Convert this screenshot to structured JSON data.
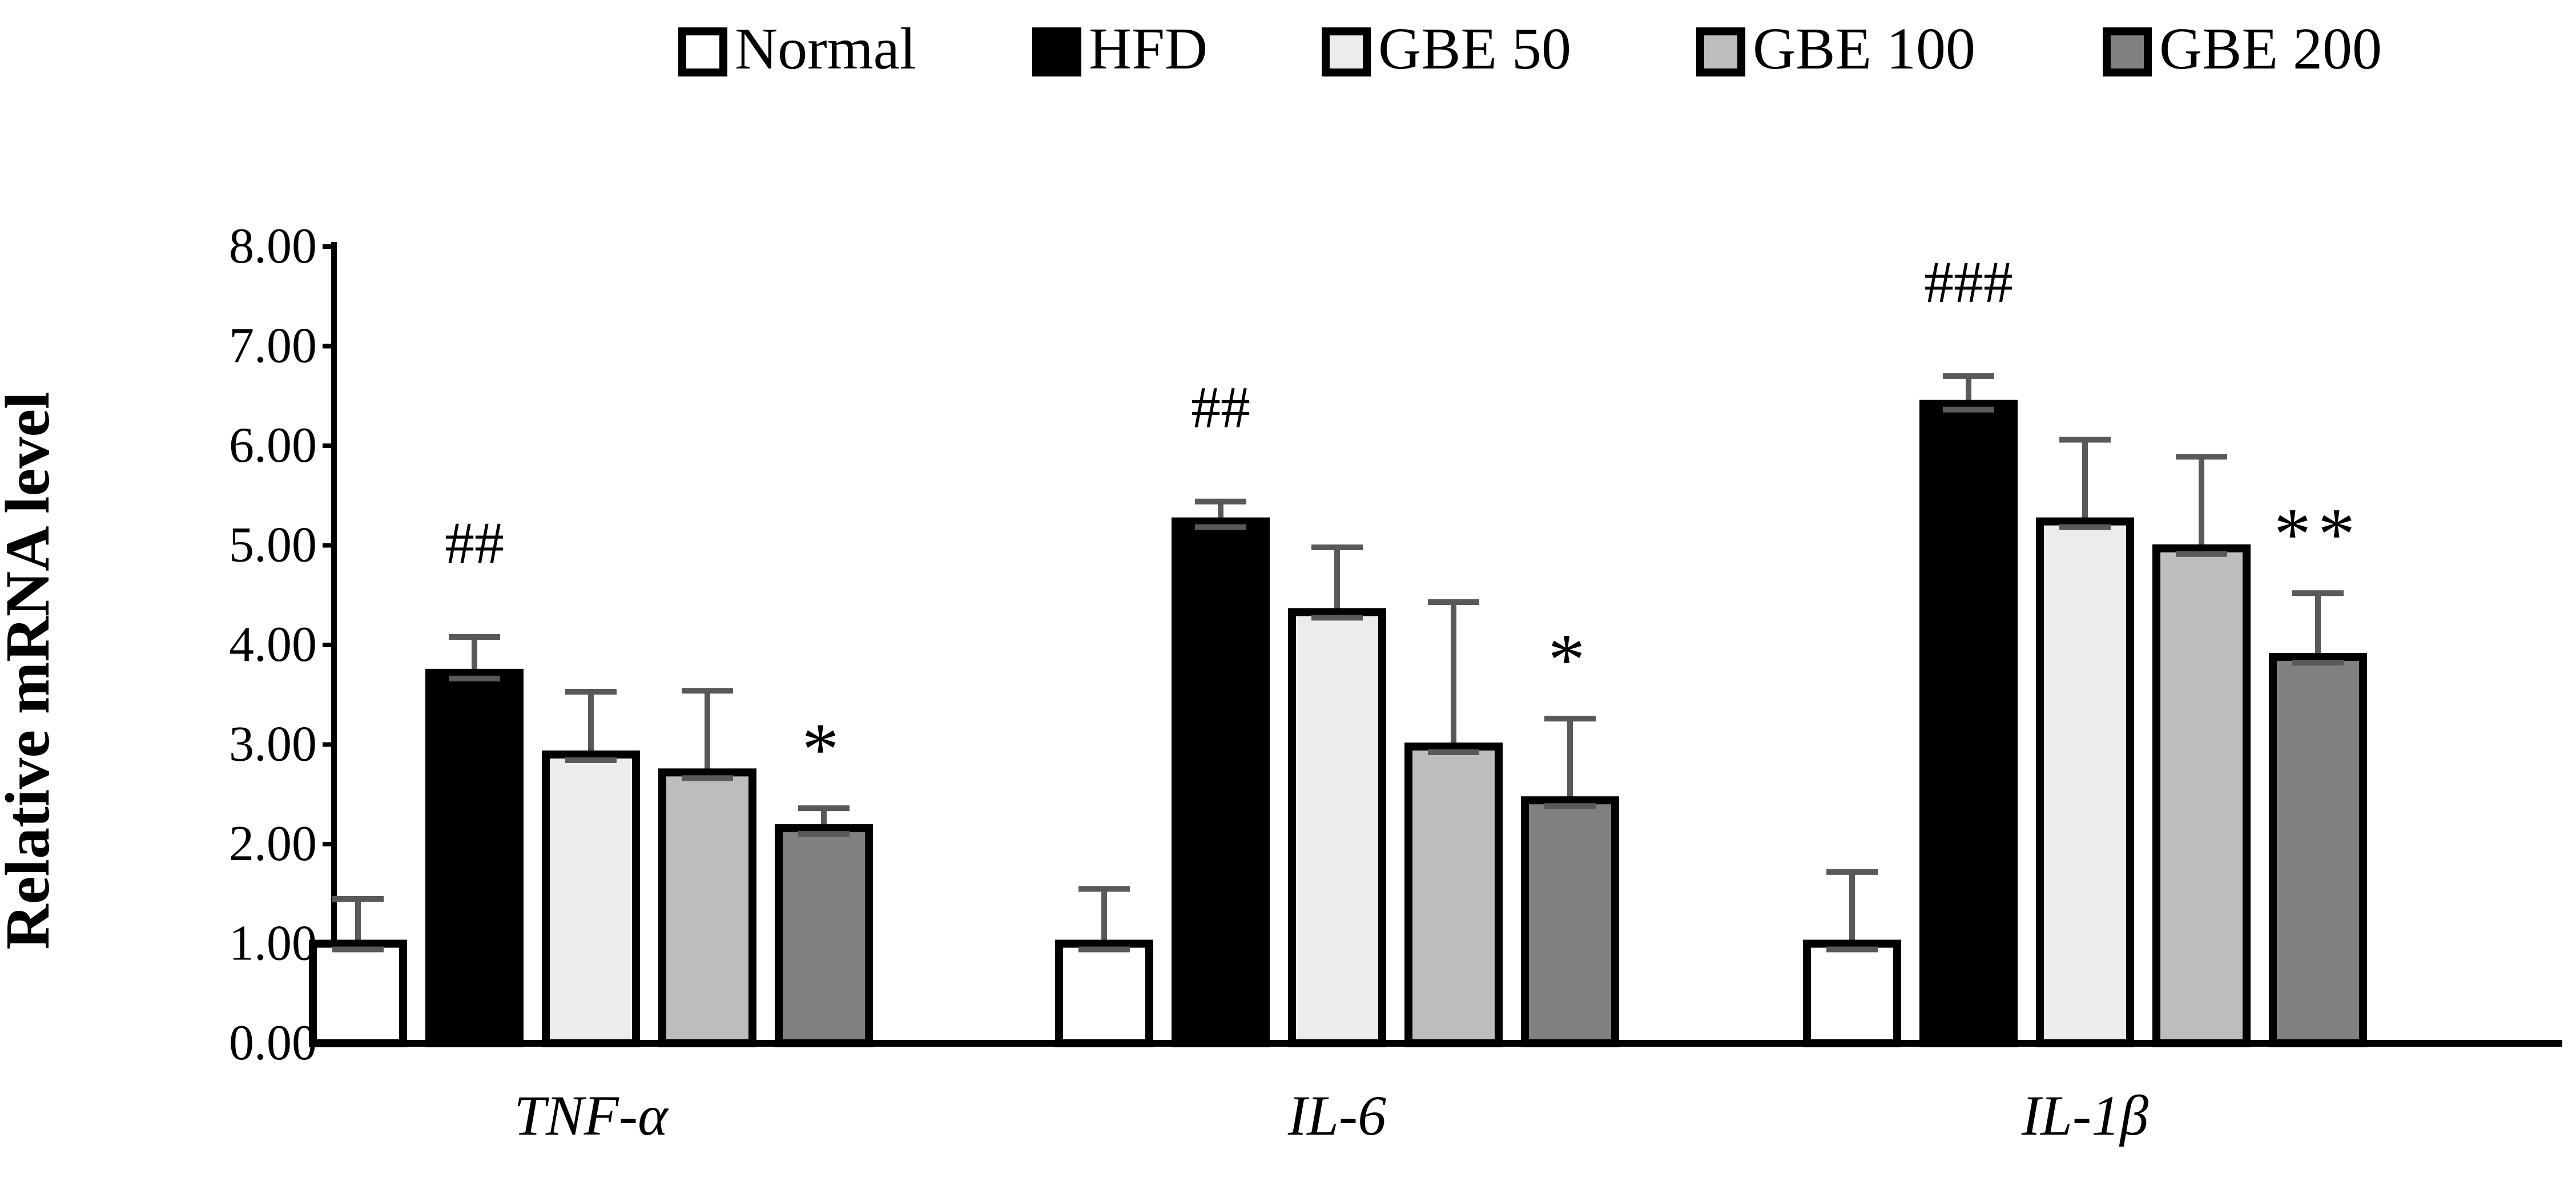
{
  "chart_data": {
    "type": "bar",
    "title": "",
    "xlabel": "",
    "ylabel": "Relative mRNA level",
    "ylim": [
      0,
      8
    ],
    "ytick_step": 1,
    "ytick_labels": [
      "0.00",
      "1.00",
      "2.00",
      "3.00",
      "4.00",
      "5.00",
      "6.00",
      "7.00",
      "8.00"
    ],
    "grid": false,
    "legend_position": "top",
    "categories": [
      "TNF-α",
      "IL-6",
      "IL-1β"
    ],
    "series": [
      {
        "name": "Normal",
        "color": "#ffffff",
        "values": [
          1.0,
          1.0,
          1.0
        ],
        "errors": [
          0.45,
          0.55,
          0.72
        ]
      },
      {
        "name": "HFD",
        "color": "#000000",
        "values": [
          3.72,
          5.24,
          6.42
        ],
        "errors": [
          0.36,
          0.2,
          0.28
        ]
      },
      {
        "name": "GBE 50",
        "color": "#ececec",
        "values": [
          2.9,
          4.33,
          5.24
        ],
        "errors": [
          0.63,
          0.65,
          0.82
        ]
      },
      {
        "name": "GBE 100",
        "color": "#bdbdbd",
        "values": [
          2.72,
          2.98,
          4.97
        ],
        "errors": [
          0.82,
          1.45,
          0.92
        ]
      },
      {
        "name": "GBE 200",
        "color": "#808080",
        "values": [
          2.16,
          2.44,
          3.88
        ],
        "errors": [
          0.2,
          0.82,
          0.64
        ]
      }
    ],
    "annotations": [
      {
        "category": 0,
        "series": 1,
        "text": "##"
      },
      {
        "category": 0,
        "series": 4,
        "text": "*"
      },
      {
        "category": 1,
        "series": 1,
        "text": "##"
      },
      {
        "category": 1,
        "series": 4,
        "text": "*"
      },
      {
        "category": 2,
        "series": 1,
        "text": "###"
      },
      {
        "category": 2,
        "series": 4,
        "text": "**"
      }
    ]
  }
}
